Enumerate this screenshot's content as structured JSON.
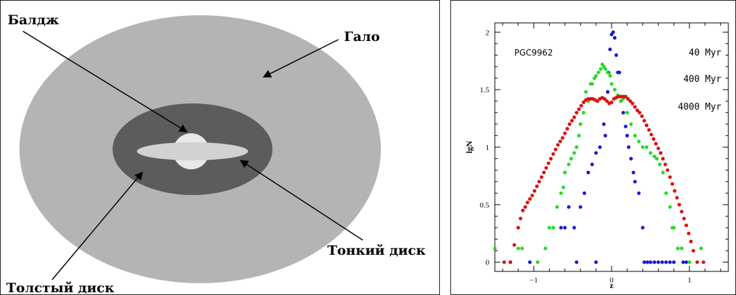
{
  "diagram": {
    "labels": {
      "bulge": "Балдж",
      "halo": "Гало",
      "thin_disk": "Тонкий диск",
      "thick_disk": "Толстый диск"
    },
    "colors": {
      "halo": "#b4b4b4",
      "thick_disk": "#5c5c5c",
      "thin_disk": "#d2d2d2",
      "bulge": "#e8e8e8"
    }
  },
  "chart_data": {
    "type": "scatter",
    "title": "PGC9962",
    "xlabel": "z",
    "ylabel": "lgN",
    "xlim": [
      -1.5,
      1.5
    ],
    "ylim": [
      -0.08,
      2.08
    ],
    "xticks": [
      "−1",
      "0",
      "1"
    ],
    "yticks": [
      "0",
      "0.5",
      "1",
      "1.5",
      "2"
    ],
    "grid": false,
    "legend_position": "top-right",
    "series": [
      {
        "name": "40 Myr",
        "color": "#1a1ad6",
        "points": [
          [
            -1.3,
            0
          ],
          [
            -1.05,
            0
          ],
          [
            -0.65,
            0.3
          ],
          [
            -0.6,
            0.3
          ],
          [
            -0.55,
            0.48
          ],
          [
            -0.48,
            0.3
          ],
          [
            -0.45,
            0
          ],
          [
            -0.4,
            0.48
          ],
          [
            -0.35,
            0.6
          ],
          [
            -0.3,
            0.78
          ],
          [
            -0.25,
            0.85
          ],
          [
            -0.2,
            0
          ],
          [
            -0.2,
            0.95
          ],
          [
            -0.15,
            1.0
          ],
          [
            -0.1,
            1.2
          ],
          [
            -0.08,
            1.1
          ],
          [
            -0.05,
            1.48
          ],
          [
            -0.04,
            1.65
          ],
          [
            -0.02,
            1.85
          ],
          [
            0.0,
            1.98
          ],
          [
            0.02,
            2.0
          ],
          [
            0.04,
            1.95
          ],
          [
            0.06,
            1.8
          ],
          [
            0.08,
            1.65
          ],
          [
            0.1,
            1.65
          ],
          [
            0.12,
            1.4
          ],
          [
            0.15,
            1.3
          ],
          [
            0.18,
            1.18
          ],
          [
            0.2,
            1.1
          ],
          [
            0.22,
            1.0
          ],
          [
            0.25,
            0.9
          ],
          [
            0.28,
            0.78
          ],
          [
            0.3,
            0.7
          ],
          [
            0.35,
            0.6
          ],
          [
            0.4,
            0.3
          ],
          [
            0.42,
            0
          ],
          [
            0.46,
            0
          ],
          [
            0.5,
            0
          ],
          [
            0.55,
            0
          ],
          [
            0.6,
            0
          ],
          [
            0.65,
            0
          ],
          [
            0.7,
            0
          ],
          [
            0.75,
            0
          ],
          [
            0.8,
            0
          ],
          [
            0.92,
            0
          ],
          [
            0.96,
            0
          ]
        ]
      },
      {
        "name": "400 Myr",
        "color": "#22dd22",
        "points": [
          [
            -1.5,
            0.12
          ],
          [
            -1.2,
            0.12
          ],
          [
            -1.15,
            0.12
          ],
          [
            -0.95,
            0
          ],
          [
            -0.85,
            0.12
          ],
          [
            -0.8,
            0.3
          ],
          [
            -0.75,
            0.3
          ],
          [
            -0.7,
            0.48
          ],
          [
            -0.65,
            0.6
          ],
          [
            -0.62,
            0.65
          ],
          [
            -0.6,
            0.78
          ],
          [
            -0.55,
            0.85
          ],
          [
            -0.52,
            0.9
          ],
          [
            -0.48,
            0.95
          ],
          [
            -0.45,
            1.0
          ],
          [
            -0.42,
            1.1
          ],
          [
            -0.4,
            1.2
          ],
          [
            -0.36,
            1.3
          ],
          [
            -0.33,
            1.48
          ],
          [
            -0.3,
            1.4
          ],
          [
            -0.27,
            1.55
          ],
          [
            -0.25,
            1.55
          ],
          [
            -0.22,
            1.6
          ],
          [
            -0.2,
            1.62
          ],
          [
            -0.17,
            1.65
          ],
          [
            -0.14,
            1.68
          ],
          [
            -0.12,
            1.72
          ],
          [
            -0.1,
            1.7
          ],
          [
            -0.08,
            1.68
          ],
          [
            -0.05,
            1.65
          ],
          [
            -0.02,
            1.62
          ],
          [
            0.0,
            1.55
          ],
          [
            0.04,
            1.5
          ],
          [
            0.08,
            1.45
          ],
          [
            0.12,
            1.4
          ],
          [
            0.15,
            1.42
          ],
          [
            0.2,
            1.3
          ],
          [
            0.25,
            1.2
          ],
          [
            0.3,
            1.1
          ],
          [
            0.35,
            1.05
          ],
          [
            0.4,
            1.0
          ],
          [
            0.45,
            1.0
          ],
          [
            0.5,
            0.95
          ],
          [
            0.55,
            0.92
          ],
          [
            0.58,
            0.9
          ],
          [
            0.62,
            0.85
          ],
          [
            0.66,
            0.78
          ],
          [
            0.7,
            0.6
          ],
          [
            0.75,
            0.48
          ],
          [
            0.78,
            0.3
          ],
          [
            0.8,
            0.3
          ],
          [
            0.85,
            0.12
          ],
          [
            0.9,
            0.12
          ],
          [
            1.0,
            0
          ],
          [
            1.15,
            0.12
          ]
        ]
      },
      {
        "name": "4000 Myr",
        "color": "#dd1111",
        "points": [
          [
            -1.38,
            0
          ],
          [
            -1.3,
            0
          ],
          [
            -1.25,
            0.15
          ],
          [
            -1.2,
            0.3
          ],
          [
            -1.17,
            0.38
          ],
          [
            -1.14,
            0.45
          ],
          [
            -1.11,
            0.48
          ],
          [
            -1.08,
            0.52
          ],
          [
            -1.05,
            0.55
          ],
          [
            -1.02,
            0.58
          ],
          [
            -0.99,
            0.62
          ],
          [
            -0.96,
            0.66
          ],
          [
            -0.93,
            0.7
          ],
          [
            -0.9,
            0.74
          ],
          [
            -0.87,
            0.78
          ],
          [
            -0.84,
            0.82
          ],
          [
            -0.81,
            0.86
          ],
          [
            -0.78,
            0.9
          ],
          [
            -0.75,
            0.94
          ],
          [
            -0.72,
            0.98
          ],
          [
            -0.69,
            1.02
          ],
          [
            -0.66,
            1.05
          ],
          [
            -0.63,
            1.08
          ],
          [
            -0.6,
            1.12
          ],
          [
            -0.57,
            1.16
          ],
          [
            -0.54,
            1.2
          ],
          [
            -0.51,
            1.23
          ],
          [
            -0.48,
            1.26
          ],
          [
            -0.45,
            1.3
          ],
          [
            -0.42,
            1.33
          ],
          [
            -0.39,
            1.36
          ],
          [
            -0.36,
            1.39
          ],
          [
            -0.33,
            1.41
          ],
          [
            -0.3,
            1.42
          ],
          [
            -0.27,
            1.42
          ],
          [
            -0.24,
            1.42
          ],
          [
            -0.21,
            1.41
          ],
          [
            -0.18,
            1.4
          ],
          [
            -0.15,
            1.42
          ],
          [
            -0.12,
            1.43
          ],
          [
            -0.09,
            1.42
          ],
          [
            -0.06,
            1.4
          ],
          [
            -0.03,
            1.38
          ],
          [
            0.0,
            1.39
          ],
          [
            0.03,
            1.42
          ],
          [
            0.06,
            1.43
          ],
          [
            0.09,
            1.44
          ],
          [
            0.12,
            1.44
          ],
          [
            0.15,
            1.44
          ],
          [
            0.18,
            1.44
          ],
          [
            0.21,
            1.42
          ],
          [
            0.24,
            1.4
          ],
          [
            0.27,
            1.38
          ],
          [
            0.3,
            1.35
          ],
          [
            0.33,
            1.32
          ],
          [
            0.36,
            1.3
          ],
          [
            0.39,
            1.27
          ],
          [
            0.42,
            1.23
          ],
          [
            0.45,
            1.19
          ],
          [
            0.48,
            1.15
          ],
          [
            0.51,
            1.11
          ],
          [
            0.54,
            1.07
          ],
          [
            0.57,
            1.03
          ],
          [
            0.6,
            0.99
          ],
          [
            0.63,
            0.95
          ],
          [
            0.66,
            0.9
          ],
          [
            0.69,
            0.85
          ],
          [
            0.72,
            0.8
          ],
          [
            0.75,
            0.74
          ],
          [
            0.78,
            0.68
          ],
          [
            0.81,
            0.62
          ],
          [
            0.84,
            0.56
          ],
          [
            0.87,
            0.5
          ],
          [
            0.9,
            0.44
          ],
          [
            0.93,
            0.38
          ],
          [
            0.96,
            0.32
          ],
          [
            0.99,
            0.25
          ],
          [
            1.02,
            0.18
          ],
          [
            1.05,
            0.1
          ],
          [
            1.1,
            0.0
          ],
          [
            1.18,
            0.0
          ]
        ]
      }
    ]
  }
}
